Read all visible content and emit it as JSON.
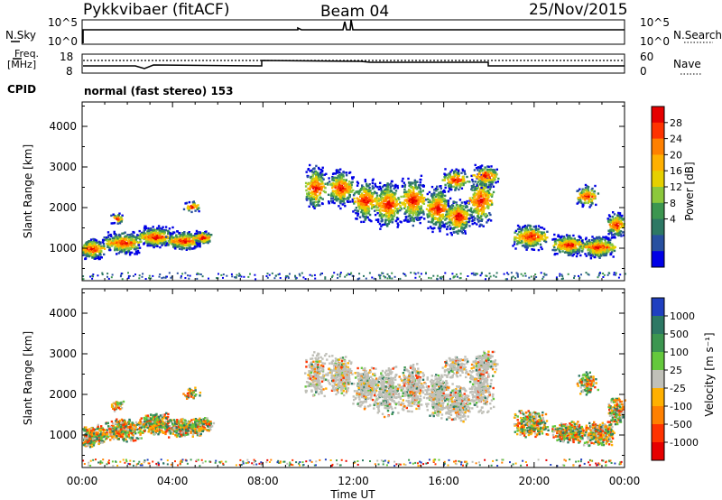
{
  "header": {
    "title": "Pykkvibaer (fitACF)",
    "beam": "Beam 04",
    "date": "25/Nov/2015"
  },
  "strip1": {
    "left_label": "N.Sky",
    "right_label": "N.Search",
    "left_ticks": [
      "10^5",
      "10^0"
    ],
    "right_ticks": [
      "10^5",
      "10^0"
    ]
  },
  "strip2": {
    "left_label_top": "Freq.",
    "left_label_bottom": "[MHz]",
    "right_label": "Nave",
    "left_ticks": [
      "18",
      "8"
    ],
    "right_ticks": [
      "60",
      "0"
    ]
  },
  "cpid": {
    "label": "CPID",
    "value": "normal (fast stereo) 153"
  },
  "chart_data": [
    {
      "type": "heatmap",
      "name": "power-panel",
      "ylabel": "Slant Range [km]",
      "xlabel": "Time UT",
      "ylim": [
        200,
        4600
      ],
      "yticks": [
        "1000",
        "2000",
        "3000",
        "4000"
      ],
      "colorbar": {
        "label": "Power [dB]",
        "ticks": [
          "28",
          "24",
          "20",
          "16",
          "12",
          "8",
          "4"
        ],
        "colors": [
          "#e60000",
          "#ff3300",
          "#ff8000",
          "#ffb000",
          "#e6d000",
          "#8cc83c",
          "#3c9650",
          "#2d7864",
          "#2850a0",
          "#0000e6"
        ]
      }
    },
    {
      "type": "heatmap",
      "name": "velocity-panel",
      "ylabel": "Slant Range [km]",
      "xlabel": "Time UT",
      "ylim": [
        200,
        4600
      ],
      "yticks": [
        "1000",
        "2000",
        "3000",
        "4000"
      ],
      "colorbar": {
        "label": "Velocity [m s⁻¹]",
        "ticks": [
          "1000",
          "500",
          "100",
          "25",
          "-25",
          "-100",
          "-500",
          "-1000"
        ],
        "colors": [
          "#2040c0",
          "#2d7864",
          "#3c9650",
          "#64c83c",
          "#c0c0b8",
          "#ffb000",
          "#ff8000",
          "#ff3300",
          "#e60000"
        ]
      }
    }
  ],
  "x_axis": {
    "ticks": [
      "00:00",
      "04:00",
      "08:00",
      "12:00",
      "16:00",
      "20:00",
      "00:00"
    ],
    "xlabel": "Time UT"
  }
}
